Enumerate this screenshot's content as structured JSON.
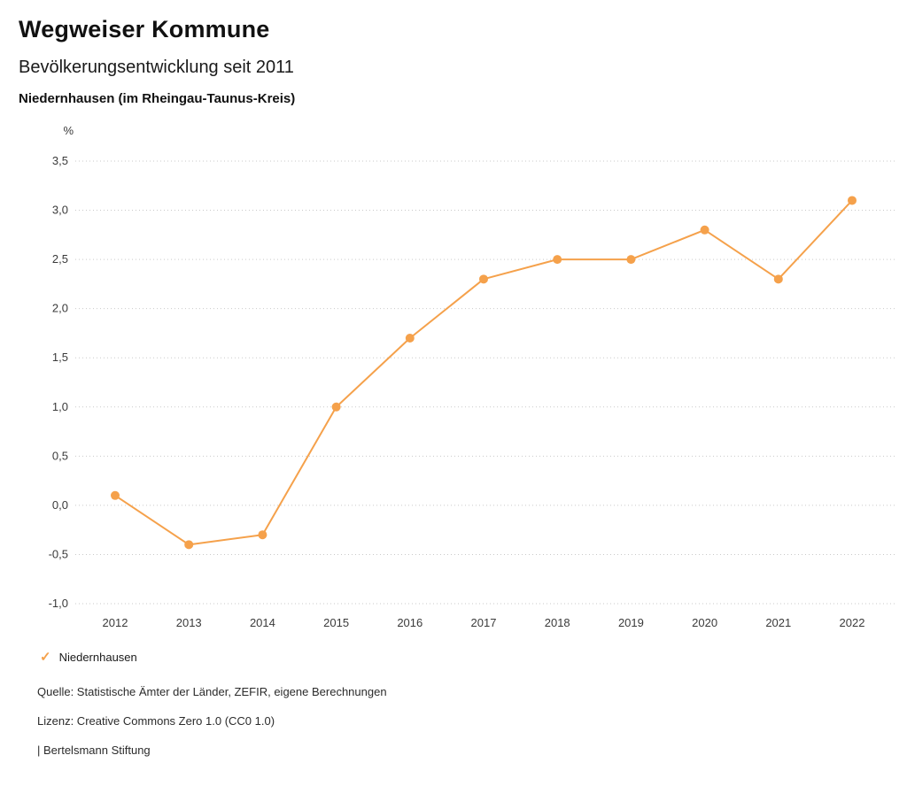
{
  "header": {
    "title": "Wegweiser Kommune",
    "subtitle": "Bevölkerungsentwicklung seit 2011",
    "region": "Niedernhausen (im Rheingau-Taunus-Kreis)"
  },
  "chart_data": {
    "type": "line",
    "title": "Bevölkerungsentwicklung seit 2011",
    "unit_label": "%",
    "x": [
      "2012",
      "2013",
      "2014",
      "2015",
      "2016",
      "2017",
      "2018",
      "2019",
      "2020",
      "2021",
      "2022"
    ],
    "series": [
      {
        "name": "Niedernhausen",
        "values": [
          0.1,
          -0.4,
          -0.3,
          1.0,
          1.7,
          2.3,
          2.5,
          2.5,
          2.8,
          2.3,
          3.1
        ]
      }
    ],
    "ylim": [
      -1.0,
      3.5
    ],
    "ytick_step": 0.5,
    "ytick_labels": [
      "-1,0",
      "-0,5",
      "0,0",
      "0,5",
      "1,0",
      "1,5",
      "2,0",
      "2,5",
      "3,0",
      "3,5"
    ],
    "grid": "horizontal-dotted",
    "legend_position": "bottom-left",
    "line_color": "#F5A14B",
    "legend": [
      {
        "label": "Niedernhausen",
        "color": "#F5A14B",
        "marker": "check"
      }
    ]
  },
  "legend_check_glyph": "✓",
  "footer": {
    "source": "Quelle: Statistische Ämter der Länder, ZEFIR, eigene Berechnungen",
    "license": "Lizenz: Creative Commons Zero 1.0 (CC0 1.0)",
    "attribution": "| Bertelsmann Stiftung"
  }
}
